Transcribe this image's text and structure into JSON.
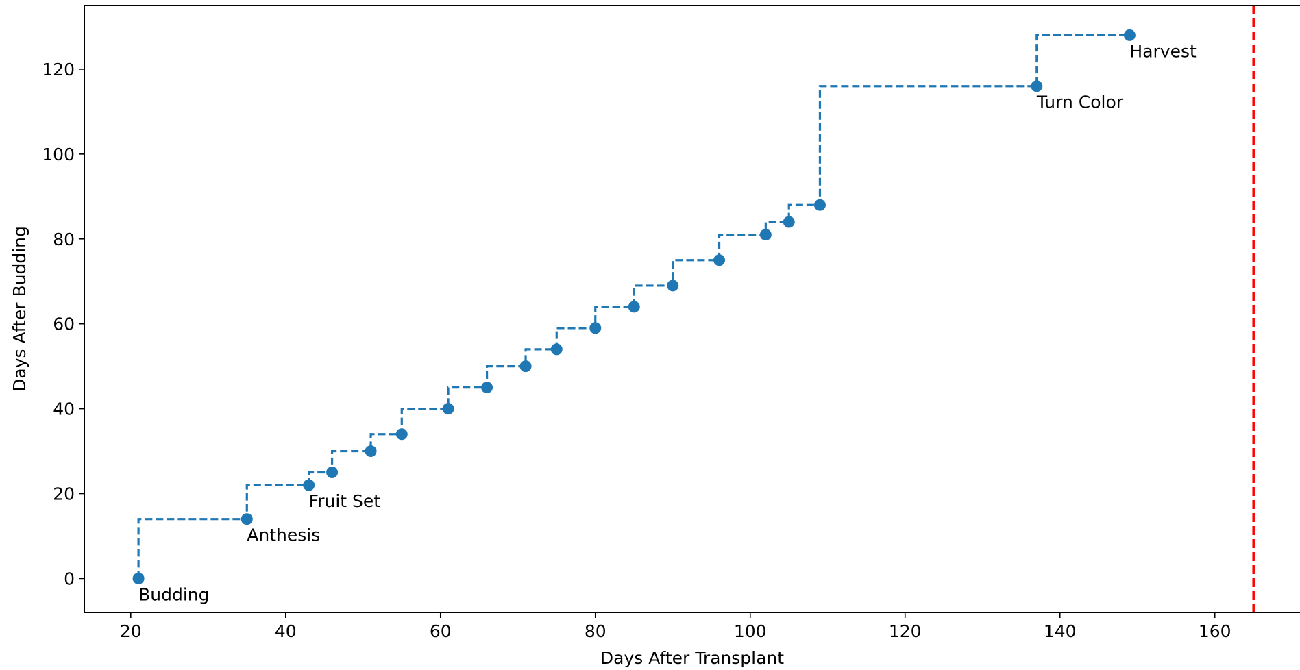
{
  "chart_data": {
    "type": "line",
    "title": "",
    "xlabel": "Days After Transplant",
    "ylabel": "Days After Budding",
    "xlim": [
      14,
      171
    ],
    "ylim": [
      -8,
      135
    ],
    "xticks": [
      20,
      40,
      60,
      80,
      100,
      120,
      140,
      160
    ],
    "yticks": [
      0,
      20,
      40,
      60,
      80,
      100,
      120
    ],
    "grid": false,
    "line_style": "dashed-step",
    "colors": {
      "series": "#1f77b4",
      "reference_line": "#ff0000"
    },
    "series": [
      {
        "x": [
          21,
          35,
          43,
          46,
          51,
          55,
          61,
          66,
          71,
          75,
          80,
          85,
          90,
          96,
          102,
          105,
          109,
          137,
          149
        ],
        "y": [
          0,
          14,
          22,
          25,
          30,
          34,
          40,
          45,
          50,
          54,
          59,
          64,
          69,
          75,
          81,
          84,
          88,
          116,
          128
        ]
      }
    ],
    "annotations": [
      {
        "text": "Budding",
        "x": 21,
        "y": 0
      },
      {
        "text": "Anthesis",
        "x": 35,
        "y": 14
      },
      {
        "text": "Fruit Set",
        "x": 43,
        "y": 22
      },
      {
        "text": "Turn Color",
        "x": 137,
        "y": 116
      },
      {
        "text": "Harvest",
        "x": 149,
        "y": 128
      }
    ],
    "reference_lines": [
      {
        "orientation": "vertical",
        "x": 165,
        "style": "dashed",
        "color": "#ff0000"
      }
    ]
  }
}
